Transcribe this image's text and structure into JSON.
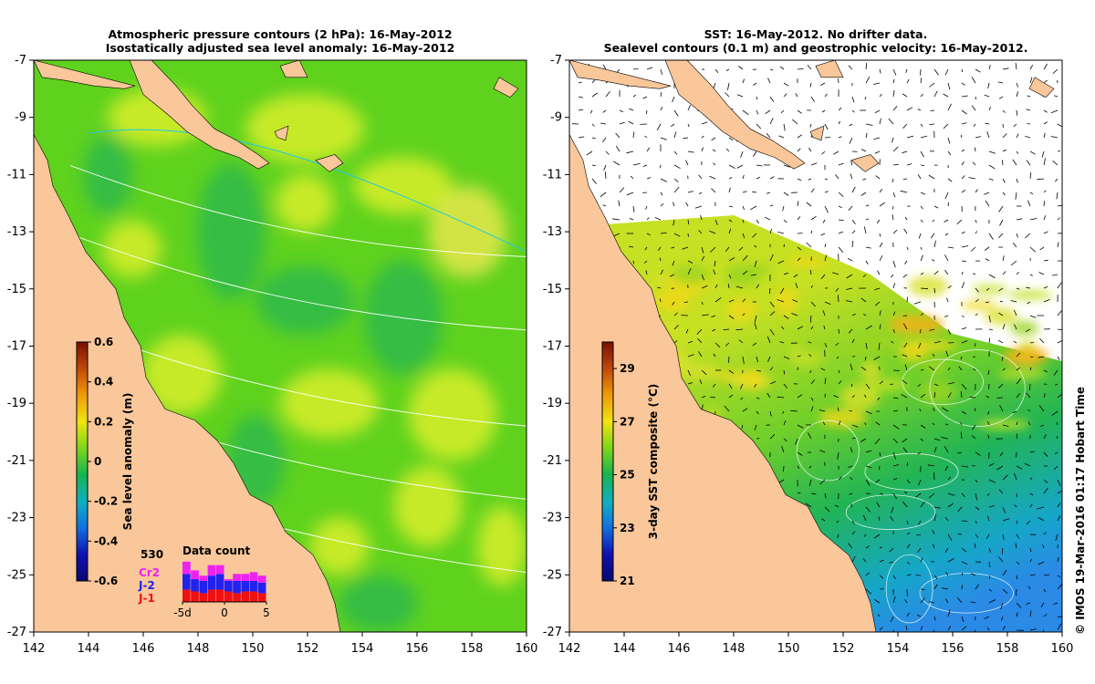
{
  "colors": {
    "land": "#f9c79a",
    "ocean_base": "#5fd21e",
    "ocean_hi": "#d9ef2a",
    "ocean_lo": "#2fb84a",
    "contour_pressure": "#ffffff",
    "contour_cyan": "#22c8e6",
    "sst_no_data": "#ffffff",
    "frame": "#000000",
    "dc_cr2": "#ee22ee",
    "dc_j2": "#2222ee",
    "dc_j1": "#ee1111"
  },
  "left_panel": {
    "title_line1": "Atmospheric pressure contours (2 hPa): 16-May-2012",
    "title_line2": "Isostatically adjusted sea level anomaly: 16-May-2012",
    "colorbar": {
      "label": "Sea level anomaly (m)",
      "ticks": [
        "0.6",
        "0.4",
        "0.2",
        "0",
        "-0.2",
        "-0.4",
        "-0.6"
      ],
      "colors": [
        "#7a0f00",
        "#c0480a",
        "#f09a08",
        "#f0e410",
        "#7ed61a",
        "#16b450",
        "#10b0c0",
        "#1070e0",
        "#1010b0",
        "#0a0a70"
      ]
    },
    "data_count": {
      "title": "Data count",
      "total": "530",
      "legend": [
        "Cr2",
        "J-2",
        "J-1"
      ],
      "x_ticks": [
        "-5d",
        "0",
        "5"
      ],
      "bars": [
        {
          "cr2": 14,
          "j2": 18,
          "j1": 14
        },
        {
          "cr2": 10,
          "j2": 14,
          "j1": 12
        },
        {
          "cr2": 6,
          "j2": 14,
          "j1": 10
        },
        {
          "cr2": 12,
          "j2": 16,
          "j1": 14
        },
        {
          "cr2": 10,
          "j2": 18,
          "j1": 14
        },
        {
          "cr2": 2,
          "j2": 12,
          "j1": 12
        },
        {
          "cr2": 8,
          "j2": 14,
          "j1": 10
        },
        {
          "cr2": 8,
          "j2": 12,
          "j1": 12
        },
        {
          "cr2": 10,
          "j2": 12,
          "j1": 12
        },
        {
          "cr2": 8,
          "j2": 12,
          "j1": 10
        }
      ]
    }
  },
  "right_panel": {
    "title_line1": "SST: 16-May-2012. No drifter data.",
    "title_line2": "Sealevel contours (0.1 m) and geostrophic velocity: 16-May-2012.",
    "colorbar": {
      "label": "3-day SST composite (°C)",
      "ticks": [
        "29",
        "27",
        "25",
        "23",
        "21"
      ],
      "colors": [
        "#7a0f00",
        "#c0480a",
        "#f09a08",
        "#f0e410",
        "#7ed61a",
        "#16b450",
        "#10b0c0",
        "#1070e0",
        "#1010b0",
        "#0a0a70"
      ]
    }
  },
  "axes": {
    "lat_ticks": [
      "-7",
      "-9",
      "-11",
      "-13",
      "-15",
      "-17",
      "-19",
      "-21",
      "-23",
      "-25",
      "-27"
    ],
    "lon_ticks": [
      "142",
      "144",
      "146",
      "148",
      "150",
      "152",
      "154",
      "156",
      "158",
      "160"
    ]
  },
  "chart_data": [
    {
      "type": "heatmap",
      "title": "Atmospheric pressure contours (2 hPa): 16-May-2012 / Isostatically adjusted sea level anomaly: 16-May-2012",
      "xlabel": "",
      "ylabel": "",
      "xlim": [
        142,
        160
      ],
      "ylim": [
        -27,
        -7
      ],
      "colorbar_label": "Sea level anomaly (m)",
      "colorbar_range": [
        -0.6,
        0.6
      ],
      "grid": false
    },
    {
      "type": "heatmap",
      "title": "SST: 16-May-2012. No drifter data. / Sealevel contours (0.1 m) and geostrophic velocity: 16-May-2012.",
      "xlabel": "",
      "ylabel": "",
      "xlim": [
        142,
        160
      ],
      "ylim": [
        -27,
        -7
      ],
      "colorbar_label": "3-day SST composite (°C)",
      "colorbar_range": [
        21,
        30
      ],
      "grid": false
    },
    {
      "type": "bar",
      "title": "Data count",
      "total": 530,
      "categories": [
        "-5",
        "-4",
        "-3",
        "-2",
        "-1",
        "0",
        "1",
        "2",
        "3",
        "4"
      ],
      "series": [
        {
          "name": "J-1",
          "values": [
            14,
            12,
            10,
            14,
            14,
            12,
            10,
            12,
            12,
            10
          ]
        },
        {
          "name": "J-2",
          "values": [
            18,
            14,
            14,
            16,
            18,
            12,
            14,
            12,
            12,
            12
          ]
        },
        {
          "name": "Cr2",
          "values": [
            14,
            10,
            6,
            12,
            10,
            2,
            8,
            8,
            10,
            8
          ]
        }
      ]
    }
  ],
  "credit": "© IMOS 19-Mar-2016 01:17 Hobart Time"
}
